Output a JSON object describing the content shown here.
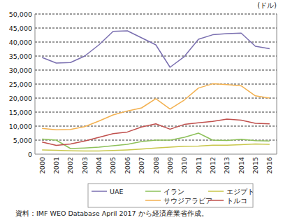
{
  "chart_data": {
    "type": "line",
    "y_label": "(ドル)",
    "source": "資料：IMF WEO Database April 2017 から経済産業省作成。",
    "categories": [
      "2000",
      "2001",
      "2002",
      "2003",
      "2004",
      "2005",
      "2006",
      "2007",
      "2008",
      "2009",
      "2010",
      "2011",
      "2012",
      "2013",
      "2014",
      "2015",
      "2016"
    ],
    "series": [
      {
        "name": "UAE",
        "color": "#7a6fb0",
        "values": [
          34500,
          32500,
          32700,
          35000,
          39000,
          43800,
          44000,
          41500,
          39000,
          31000,
          34800,
          41000,
          42600,
          43000,
          43200,
          38500,
          37600
        ]
      },
      {
        "name": "イラン",
        "color": "#8dc05a",
        "values": [
          5400,
          5000,
          2000,
          2200,
          2500,
          3000,
          3500,
          4500,
          5000,
          5000,
          6000,
          7500,
          5000,
          4900,
          5300,
          4800,
          4700
        ]
      },
      {
        "name": "エジプト",
        "color": "#c8c64a",
        "values": [
          1500,
          1400,
          1200,
          1100,
          1100,
          1300,
          1500,
          1800,
          2200,
          2500,
          2800,
          2900,
          3200,
          3200,
          3400,
          3600,
          3500
        ]
      },
      {
        "name": "サウジアラビア",
        "color": "#f3b150",
        "values": [
          9200,
          8700,
          8800,
          9800,
          11800,
          14000,
          15400,
          16500,
          19800,
          16100,
          19300,
          23600,
          25100,
          24800,
          24400,
          20800,
          20000
        ]
      },
      {
        "name": "トルコ",
        "color": "#c0504d",
        "values": [
          4300,
          3100,
          3600,
          4700,
          6000,
          7300,
          7900,
          9700,
          10800,
          8900,
          10600,
          11200,
          11700,
          12500,
          12100,
          11000,
          10800
        ]
      }
    ],
    "ylim": [
      0,
      50000
    ],
    "yticks": [
      0,
      {
        "value": 5000,
        "label": "5,000"
      },
      {
        "value": 10000,
        "label": "10,000"
      },
      {
        "value": 15000,
        "label": "15,000"
      },
      {
        "value": 20000,
        "label": "20,000"
      },
      {
        "value": 25000,
        "label": "25,000"
      },
      {
        "value": 30000,
        "label": "30,000"
      },
      {
        "value": 35000,
        "label": "35,000"
      },
      {
        "value": 40000,
        "label": "40,000"
      },
      {
        "value": 45000,
        "label": "45,000"
      },
      {
        "value": 50000,
        "label": "50,000"
      }
    ],
    "grid": true,
    "legend": "bottom"
  }
}
